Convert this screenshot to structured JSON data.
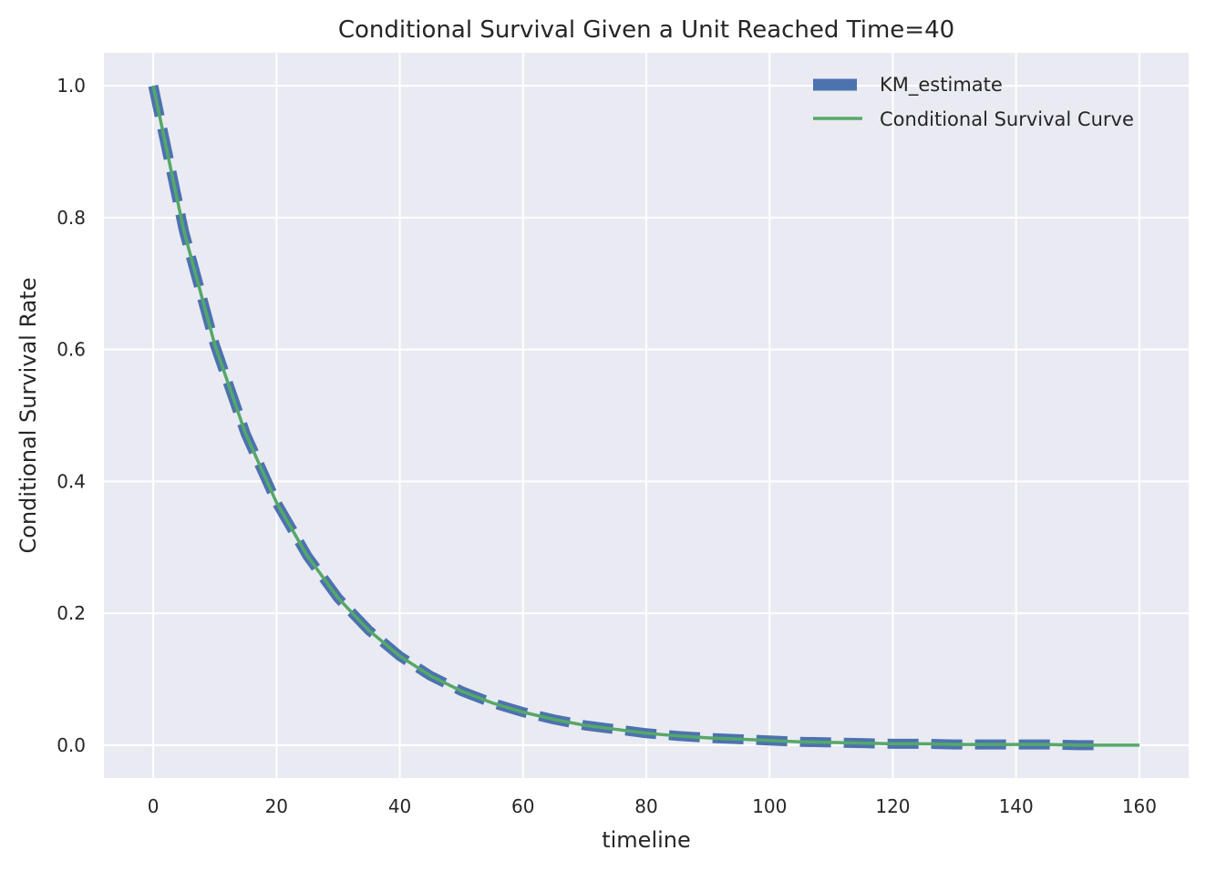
{
  "chart_data": {
    "type": "line",
    "title": "Conditional Survival Given a Unit Reached Time=40",
    "xlabel": "timeline",
    "ylabel": "Conditional Survival Rate",
    "xlim": [
      -8,
      168
    ],
    "ylim": [
      -0.05,
      1.05
    ],
    "xticks": [
      0,
      20,
      40,
      60,
      80,
      100,
      120,
      140,
      160
    ],
    "yticks": [
      0.0,
      0.2,
      0.4,
      0.6,
      0.8,
      1.0
    ],
    "ytick_labels": [
      "0.0",
      "0.2",
      "0.4",
      "0.6",
      "0.8",
      "1.0"
    ],
    "grid": true,
    "legend_position": "top-right",
    "background_color": "#eaeaf2",
    "series": [
      {
        "name": "KM_estimate",
        "style": "dashed",
        "color": "#4c72b0",
        "x": [
          0,
          5,
          10,
          15,
          20,
          25,
          30,
          35,
          40,
          45,
          50,
          55,
          60,
          65,
          70,
          75,
          80,
          85,
          90,
          95,
          100,
          105,
          110,
          115,
          120,
          125,
          130,
          135,
          140,
          145,
          150,
          154
        ],
        "y": [
          1.0,
          0.779,
          0.607,
          0.472,
          0.368,
          0.287,
          0.223,
          0.174,
          0.135,
          0.105,
          0.082,
          0.064,
          0.05,
          0.039,
          0.03,
          0.024,
          0.018,
          0.014,
          0.011,
          0.009,
          0.007,
          0.005,
          0.004,
          0.003,
          0.002,
          0.002,
          0.001,
          0.001,
          0.001,
          0.001,
          0.0,
          0.0
        ]
      },
      {
        "name": "Conditional Survival Curve",
        "style": "solid",
        "color": "#55a868",
        "x": [
          0,
          5,
          10,
          15,
          20,
          25,
          30,
          35,
          40,
          45,
          50,
          55,
          60,
          65,
          70,
          75,
          80,
          85,
          90,
          95,
          100,
          105,
          110,
          115,
          120,
          125,
          130,
          135,
          140,
          145,
          150,
          155,
          160
        ],
        "y": [
          1.0,
          0.779,
          0.607,
          0.472,
          0.368,
          0.287,
          0.223,
          0.174,
          0.135,
          0.105,
          0.082,
          0.064,
          0.05,
          0.039,
          0.03,
          0.024,
          0.018,
          0.014,
          0.011,
          0.009,
          0.007,
          0.005,
          0.004,
          0.003,
          0.002,
          0.002,
          0.001,
          0.001,
          0.001,
          0.001,
          0.0,
          0.0,
          0.0
        ]
      }
    ]
  }
}
